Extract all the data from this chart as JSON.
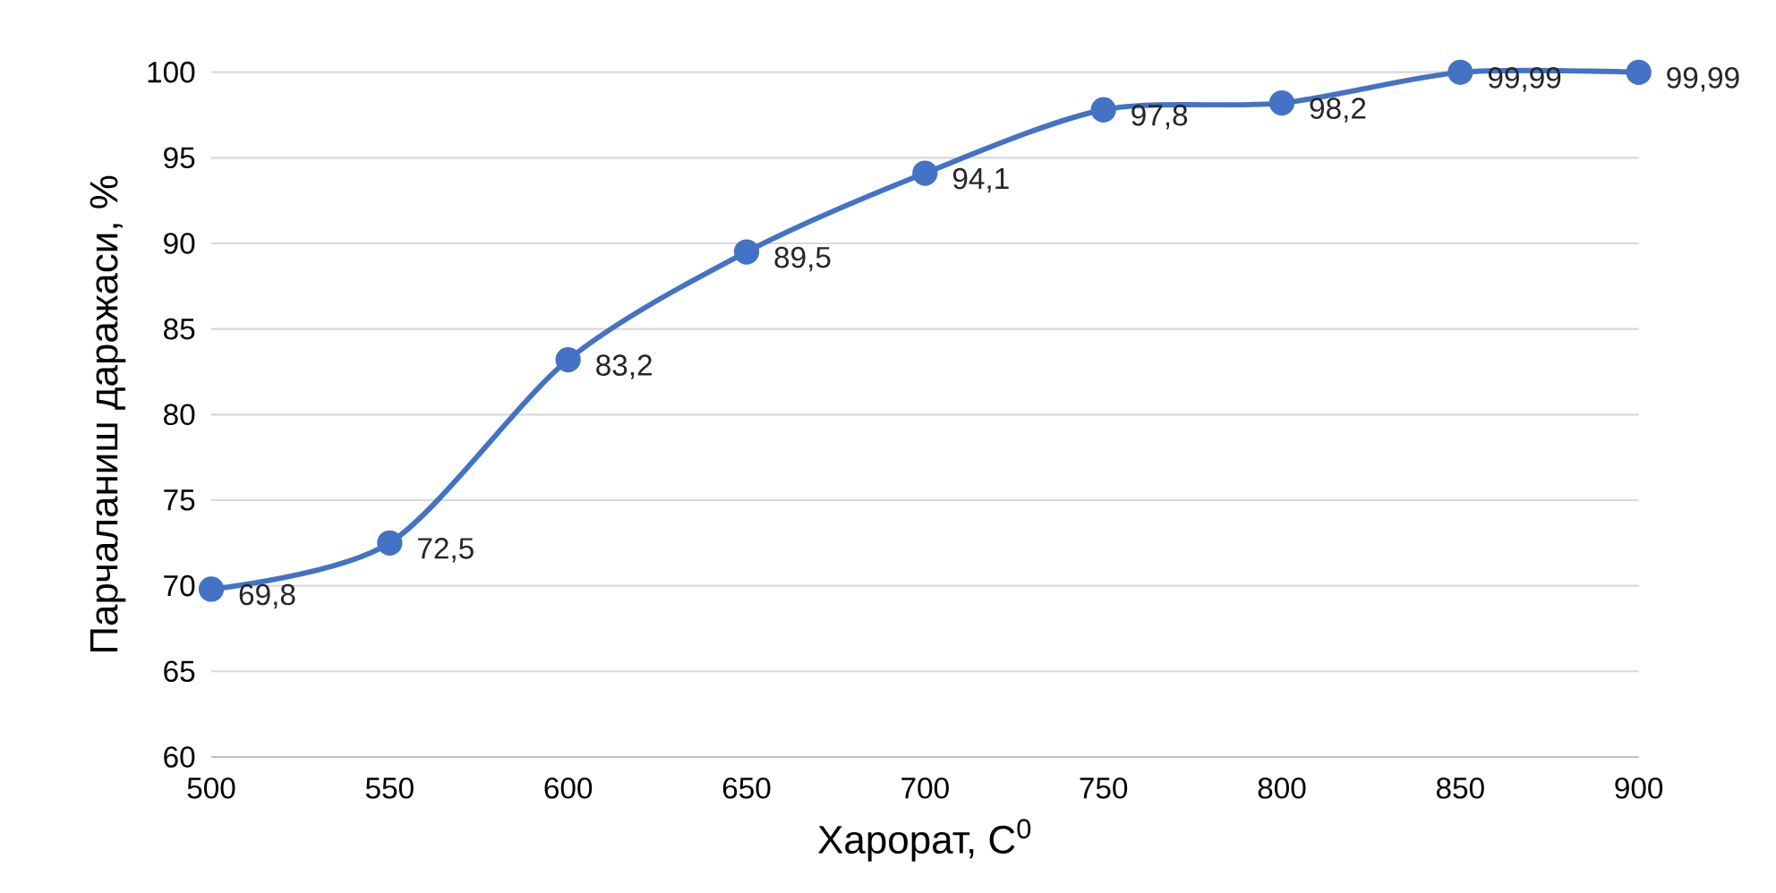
{
  "chart_data": {
    "type": "line",
    "xlabel": "Харорат, C$^{0}$",
    "ylabel": "Парчаланиш даражаси, %",
    "x": [
      500,
      550,
      600,
      650,
      700,
      750,
      800,
      850,
      900
    ],
    "series": [
      {
        "color": "#4472c4",
        "values": [
          69.8,
          72.5,
          83.2,
          89.5,
          94.1,
          97.8,
          98.2,
          99.99,
          99.99
        ],
        "value_labels": [
          "69,8",
          "72,5",
          "83,2",
          "89,5",
          "94,1",
          "97,8",
          "98,2",
          "99,99",
          "99,99"
        ]
      }
    ],
    "xlim": [
      500,
      900
    ],
    "xticks": [
      500,
      550,
      600,
      650,
      700,
      750,
      800,
      850,
      900
    ],
    "ylim": [
      60,
      100
    ],
    "yticks": [
      60,
      65,
      70,
      75,
      80,
      85,
      90,
      95,
      100
    ],
    "grid": "y",
    "marker": "circle",
    "line_style": "solid"
  }
}
